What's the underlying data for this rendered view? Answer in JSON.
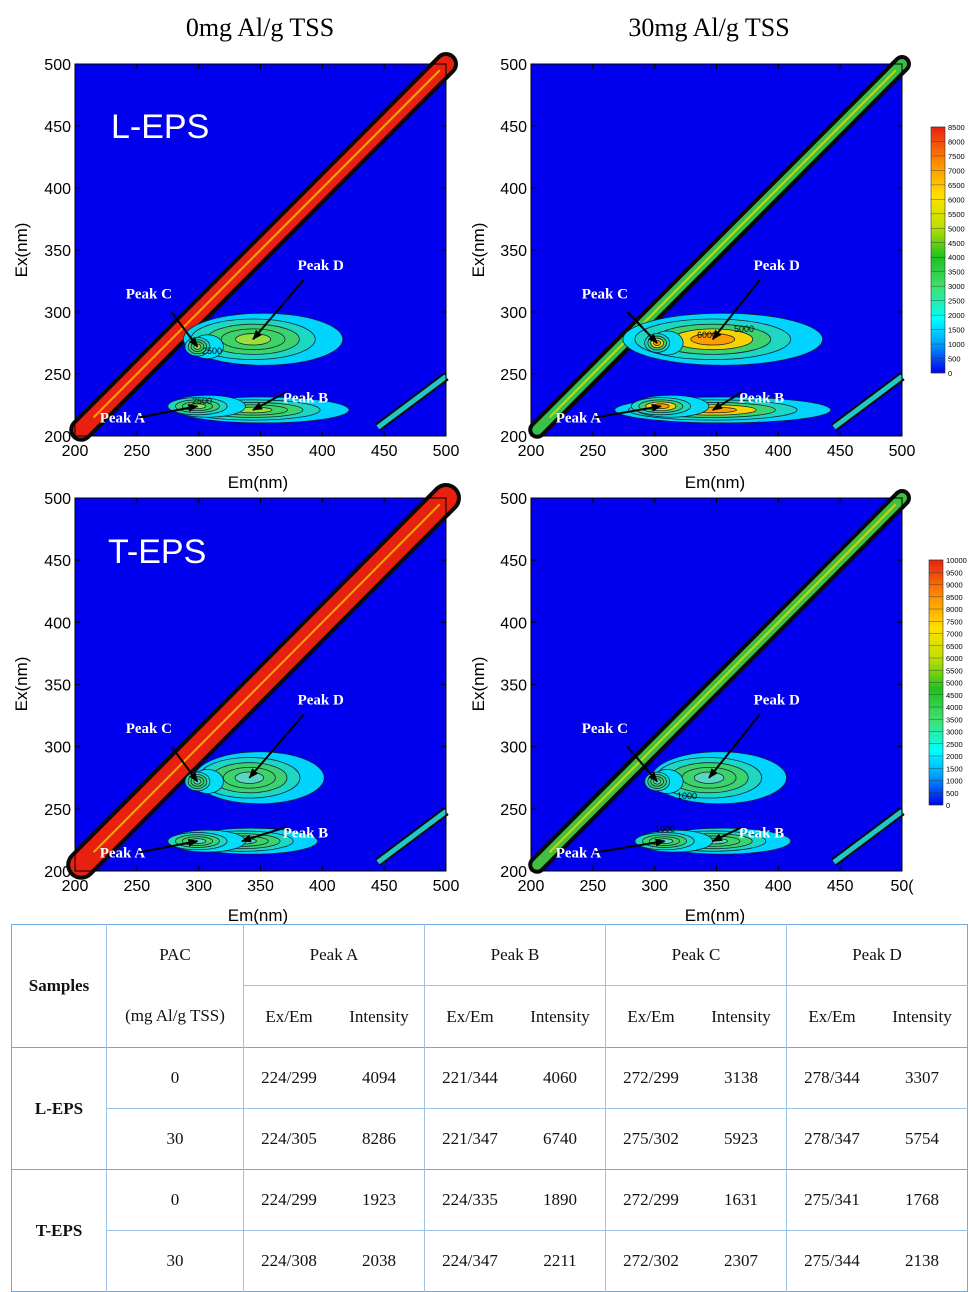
{
  "column_titles": [
    "0mg Al/g TSS",
    "30mg Al/g TSS"
  ],
  "panel_labels": [
    "L-EPS",
    "T-EPS"
  ],
  "axes": {
    "xlabel": "Em(nm)",
    "ylabel": "Ex(nm)",
    "x_ticks": [
      "200",
      "250",
      "300",
      "350",
      "400",
      "450",
      "500"
    ],
    "y_ticks": [
      "200",
      "250",
      "300",
      "350",
      "400",
      "450",
      "500"
    ],
    "last_x_tick_bottom_right": "50("
  },
  "colors": {
    "background": "#0000ee",
    "ridge": "#e8200f",
    "peak_high": "#ffd400",
    "peak_mid": "#3fd26b",
    "peak_low": "#00e0ff"
  },
  "colorbars": [
    {
      "ticks": [
        "8500",
        "8000",
        "7500",
        "7000",
        "6500",
        "6000",
        "5500",
        "5000",
        "4500",
        "4000",
        "3500",
        "3000",
        "2500",
        "2000",
        "1500",
        "1000",
        "500",
        "0"
      ]
    },
    {
      "ticks": [
        "10000",
        "9500",
        "9000",
        "8500",
        "8000",
        "7500",
        "7000",
        "6500",
        "6000",
        "5500",
        "5000",
        "4500",
        "4000",
        "3500",
        "3000",
        "2500",
        "2000",
        "1500",
        "1000",
        "500",
        "0"
      ]
    }
  ],
  "contour_labels": {
    "tl": [
      "2500",
      "2500"
    ],
    "tr": [
      "6000",
      "5000"
    ],
    "br": [
      "1000",
      "1000"
    ]
  },
  "table": {
    "header": {
      "samples": "Samples",
      "pac": "PAC",
      "pac_unit": "(mg Al/g TSS)",
      "peaks": [
        "Peak A",
        "Peak B",
        "Peak C",
        "Peak D"
      ],
      "sub": [
        "Ex/Em",
        "Intensity"
      ]
    },
    "groups": [
      {
        "sample": "L-EPS",
        "rows": [
          {
            "pac": "0",
            "cells": [
              "224/299",
              "4094",
              "221/344",
              "4060",
              "272/299",
              "3138",
              "278/344",
              "3307"
            ]
          },
          {
            "pac": "30",
            "cells": [
              "224/305",
              "8286",
              "221/347",
              "6740",
              "275/302",
              "5923",
              "278/347",
              "5754"
            ]
          }
        ]
      },
      {
        "sample": "T-EPS",
        "rows": [
          {
            "pac": "0",
            "cells": [
              "224/299",
              "1923",
              "224/335",
              "1890",
              "272/299",
              "1631",
              "275/341",
              "1768"
            ]
          },
          {
            "pac": "30",
            "cells": [
              "224/308",
              "2038",
              "224/347",
              "2211",
              "272/302",
              "2307",
              "275/344",
              "2138"
            ]
          }
        ]
      }
    ]
  },
  "chart_data": [
    {
      "type": "heatmap",
      "title": "0mg Al/g TSS",
      "panel": "L-EPS",
      "xlabel": "Em(nm)",
      "ylabel": "Ex(nm)",
      "xlim": [
        200,
        500
      ],
      "ylim": [
        200,
        500
      ],
      "peaks": [
        {
          "name": "Peak A",
          "ex": 224,
          "em": 299,
          "intensity": 4094
        },
        {
          "name": "Peak B",
          "ex": 221,
          "em": 344,
          "intensity": 4060
        },
        {
          "name": "Peak C",
          "ex": 272,
          "em": 299,
          "intensity": 3138
        },
        {
          "name": "Peak D",
          "ex": 278,
          "em": 344,
          "intensity": 3307
        }
      ],
      "colorbar_range": [
        0,
        8500
      ]
    },
    {
      "type": "heatmap",
      "title": "30mg Al/g TSS",
      "panel": "L-EPS",
      "xlabel": "Em(nm)",
      "ylabel": "Ex(nm)",
      "xlim": [
        200,
        500
      ],
      "ylim": [
        200,
        500
      ],
      "peaks": [
        {
          "name": "Peak A",
          "ex": 224,
          "em": 305,
          "intensity": 8286
        },
        {
          "name": "Peak B",
          "ex": 221,
          "em": 347,
          "intensity": 6740
        },
        {
          "name": "Peak C",
          "ex": 275,
          "em": 302,
          "intensity": 5923
        },
        {
          "name": "Peak D",
          "ex": 278,
          "em": 347,
          "intensity": 5754
        }
      ],
      "colorbar_range": [
        0,
        8500
      ]
    },
    {
      "type": "heatmap",
      "title": "0mg Al/g TSS",
      "panel": "T-EPS",
      "xlabel": "Em(nm)",
      "ylabel": "Ex(nm)",
      "xlim": [
        200,
        500
      ],
      "ylim": [
        200,
        500
      ],
      "peaks": [
        {
          "name": "Peak A",
          "ex": 224,
          "em": 299,
          "intensity": 1923
        },
        {
          "name": "Peak B",
          "ex": 224,
          "em": 335,
          "intensity": 1890
        },
        {
          "name": "Peak C",
          "ex": 272,
          "em": 299,
          "intensity": 1631
        },
        {
          "name": "Peak D",
          "ex": 275,
          "em": 341,
          "intensity": 1768
        }
      ],
      "colorbar_range": [
        0,
        10000
      ]
    },
    {
      "type": "heatmap",
      "title": "30mg Al/g TSS",
      "panel": "T-EPS",
      "xlabel": "Em(nm)",
      "ylabel": "Ex(nm)",
      "xlim": [
        200,
        500
      ],
      "ylim": [
        200,
        500
      ],
      "peaks": [
        {
          "name": "Peak A",
          "ex": 224,
          "em": 308,
          "intensity": 2038
        },
        {
          "name": "Peak B",
          "ex": 224,
          "em": 347,
          "intensity": 2211
        },
        {
          "name": "Peak C",
          "ex": 272,
          "em": 302,
          "intensity": 2307
        },
        {
          "name": "Peak D",
          "ex": 275,
          "em": 344,
          "intensity": 2138
        }
      ],
      "colorbar_range": [
        0,
        10000
      ]
    }
  ]
}
